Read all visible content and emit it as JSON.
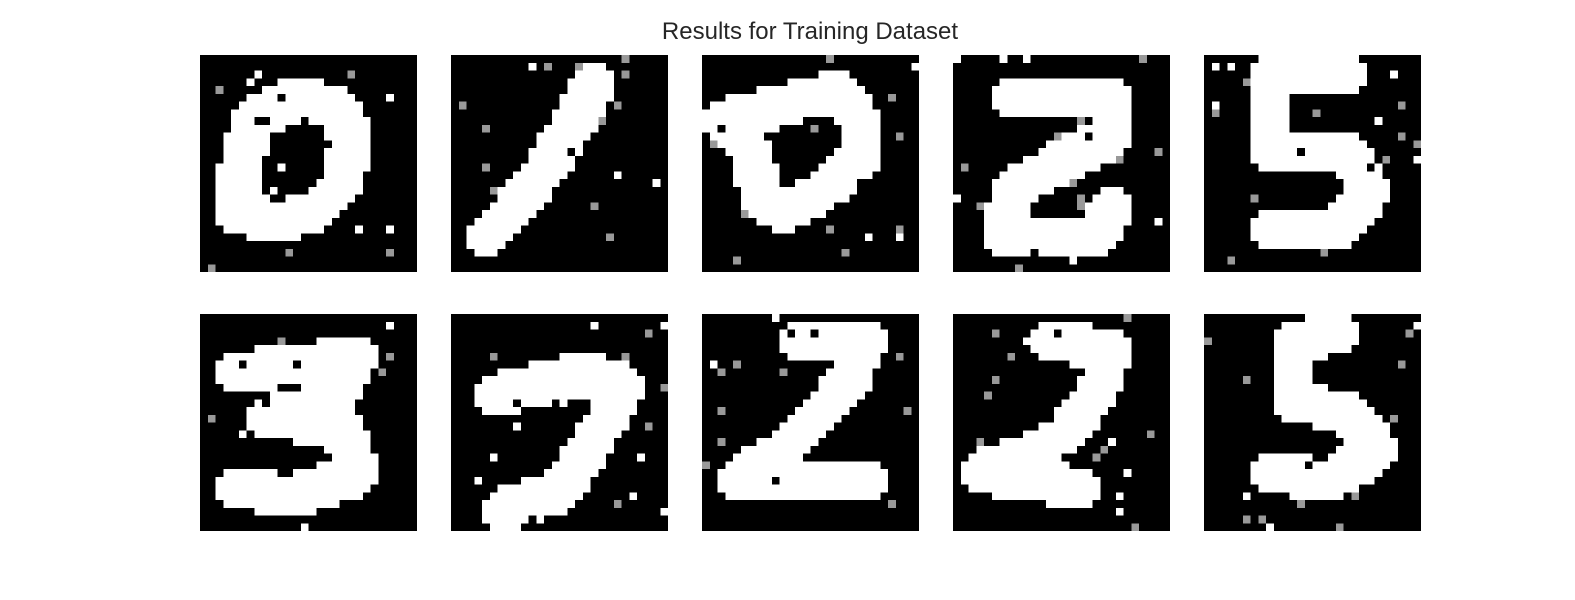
{
  "figure": {
    "title": "Results for Training Dataset",
    "rows": 2,
    "cols": 5,
    "grid_size": 28,
    "colors": {
      "background": "#ffffff",
      "title_text": "#262626",
      "tile_bg": "#000000",
      "ink": "#ffffff"
    },
    "images": [
      {
        "description": "generated binarized digit resembling 0"
      },
      {
        "description": "generated binarized digit resembling 1"
      },
      {
        "description": "generated binarized digit resembling a blob"
      },
      {
        "description": "generated binarized digit resembling 2"
      },
      {
        "description": "generated binarized digit resembling 5"
      },
      {
        "description": "generated binarized digit resembling 3"
      },
      {
        "description": "generated binarized digit resembling 7"
      },
      {
        "description": "generated binarized digit resembling 2"
      },
      {
        "description": "generated binarized digit resembling 2"
      },
      {
        "description": "generated binarized digit resembling 5"
      }
    ]
  }
}
